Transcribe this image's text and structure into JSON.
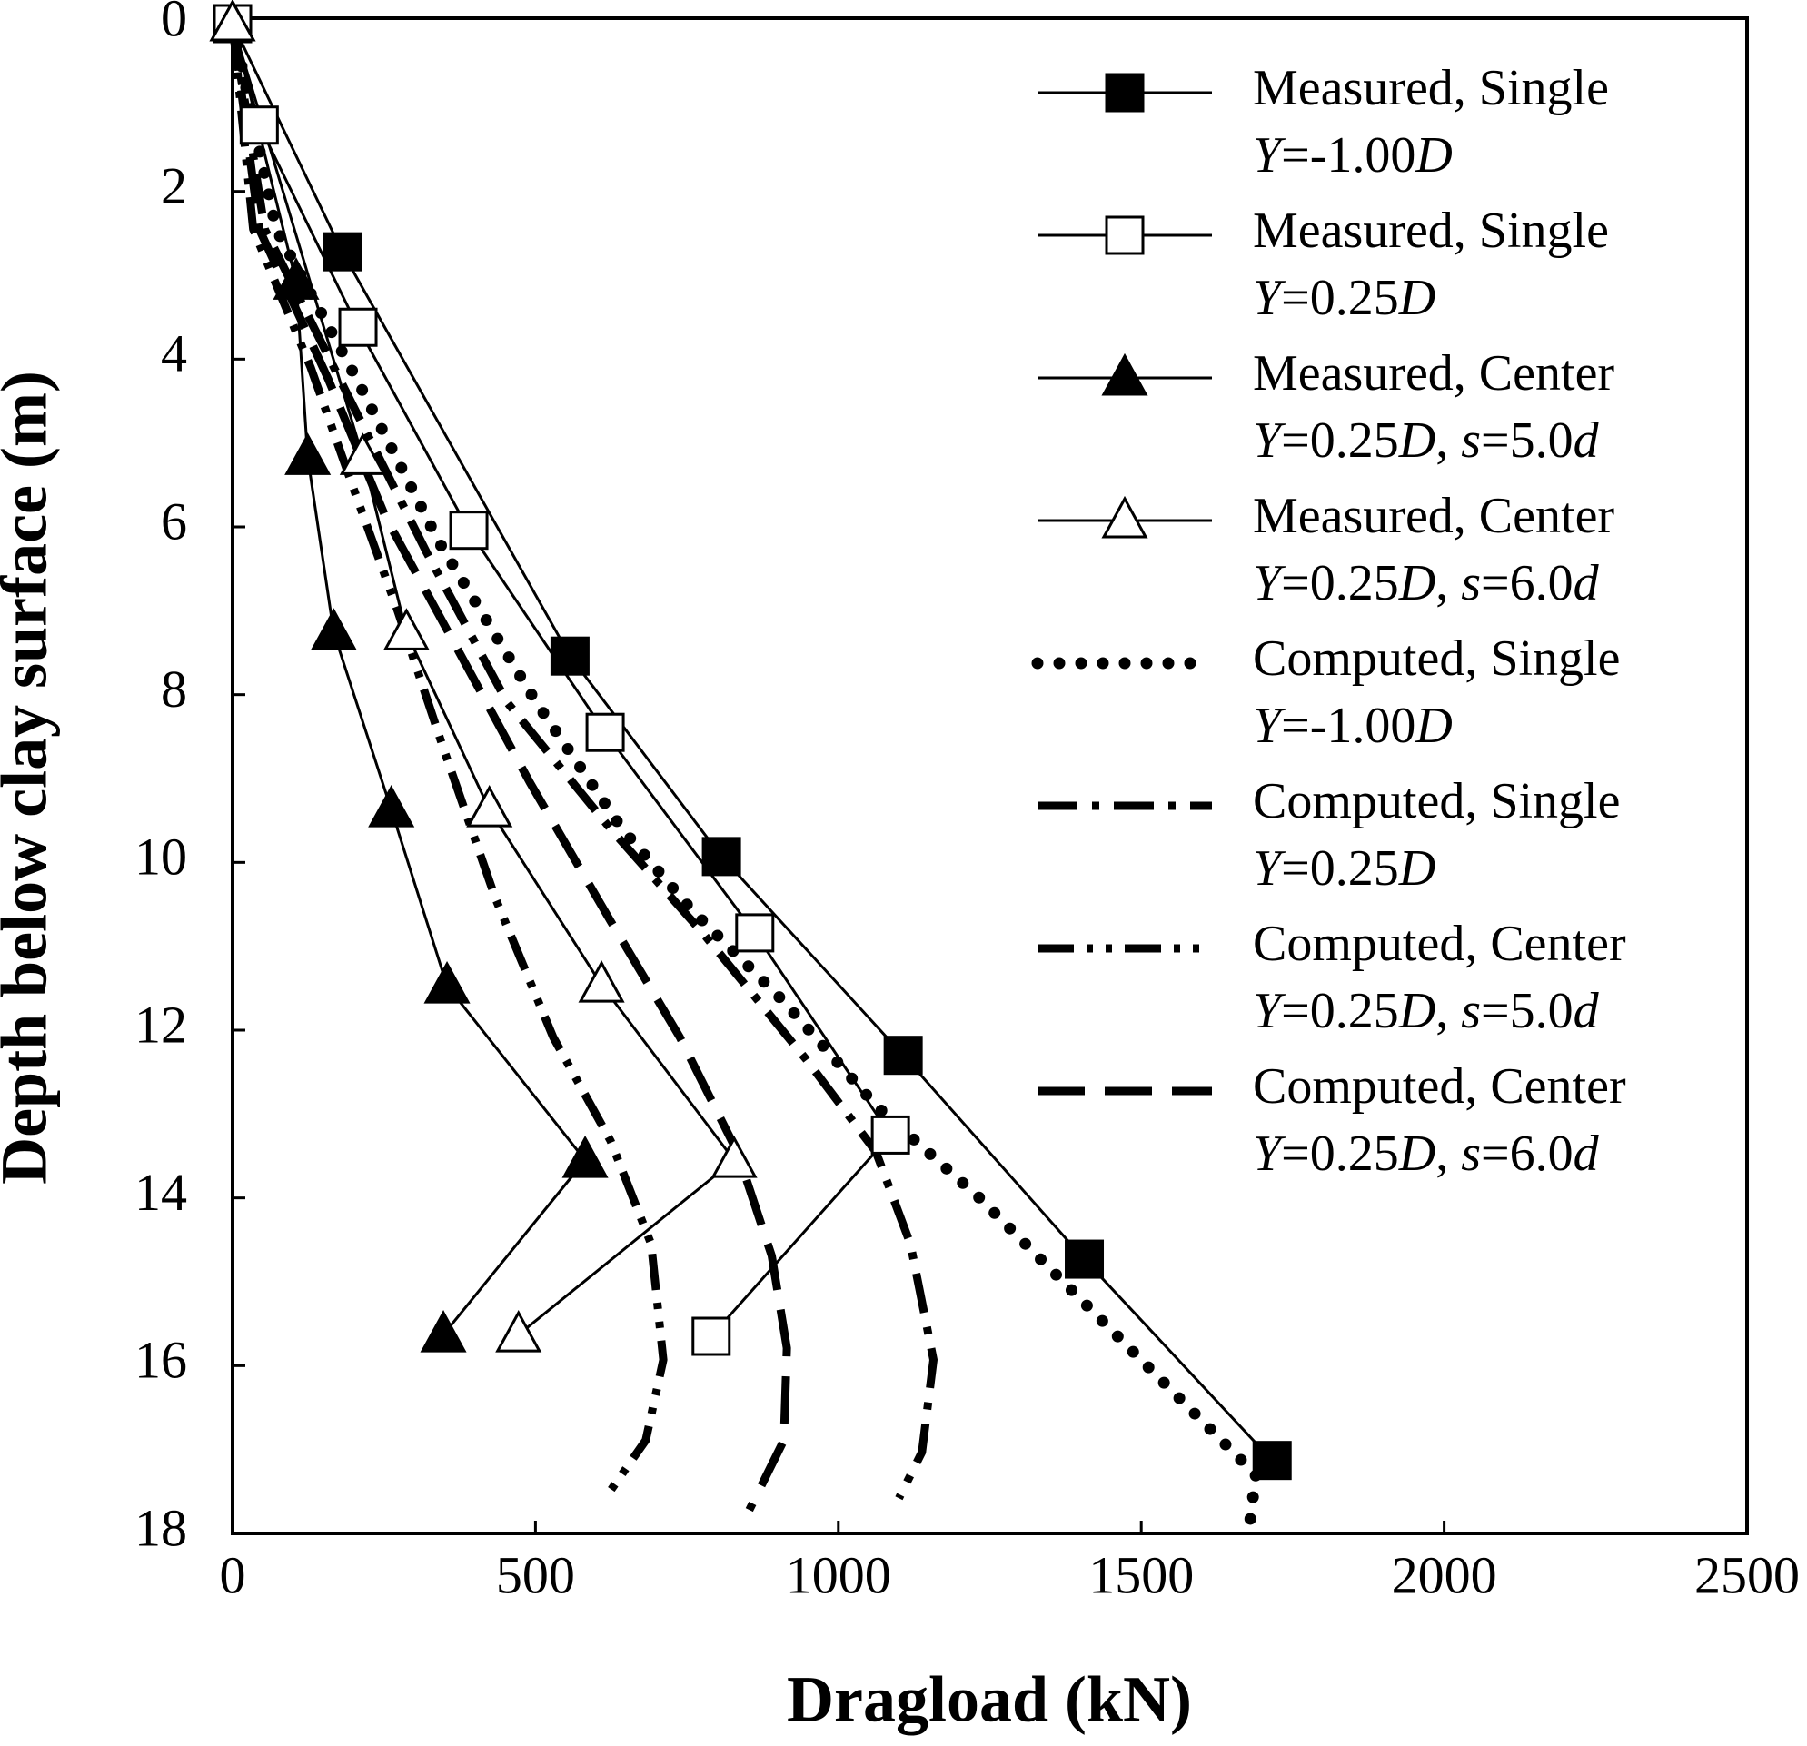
{
  "chart_data": {
    "type": "line",
    "x_label": "Dragload (kN)",
    "y_label": "Depth below clay surface (m)",
    "xlim": [
      0,
      2500
    ],
    "xticks": [
      0,
      500,
      1000,
      1500,
      2000,
      2500
    ],
    "ylim": [
      0,
      18
    ],
    "yticks": [
      0,
      2,
      4,
      6,
      8,
      10,
      12,
      14,
      16,
      18
    ],
    "y_inverted": true,
    "legend": "upper right",
    "series": [
      {
        "name": "Measured, Single",
        "condition": "Y=-1.00D",
        "color": "#000000",
        "marker": "square-filled",
        "dash": "solid",
        "x": [
          0,
          181,
          557,
          807,
          1107,
          1406,
          1716
        ],
        "values": [
          0,
          2.72,
          7.54,
          9.93,
          12.3,
          14.73,
          17.13
        ]
      },
      {
        "name": "Measured, Single",
        "condition": "Y=0.25D",
        "color": "#000000",
        "marker": "square-open",
        "dash": "solid",
        "x": [
          0,
          44,
          207,
          390,
          615,
          862,
          1086,
          790
        ],
        "values": [
          0,
          1.21,
          3.62,
          6.04,
          8.45,
          10.84,
          13.25,
          15.65
        ]
      },
      {
        "name": "Measured, Center",
        "condition": "Y=0.25D, s=5.0d",
        "color": "#000000",
        "marker": "triangle-filled",
        "dash": "solid",
        "x": [
          0,
          105,
          124,
          167,
          262,
          354,
          582,
          348
        ],
        "values": [
          0,
          3.08,
          5.17,
          7.26,
          9.37,
          11.47,
          13.55,
          15.63
        ]
      },
      {
        "name": "Measured, Center",
        "condition": "Y=0.25D, s=6.0d",
        "color": "#000000",
        "marker": "triangle-open",
        "dash": "solid",
        "x": [
          0,
          215,
          287,
          424,
          609,
          828,
          472
        ],
        "values": [
          0,
          5.17,
          7.26,
          9.37,
          11.46,
          13.55,
          15.63
        ]
      },
      {
        "name": "Computed, Single",
        "condition": "Y=-1.00D",
        "color": "#000000",
        "marker": "none",
        "dash": "dotted",
        "x": [
          0,
          72,
          205,
          339,
          501,
          643,
          757,
          910,
          1062,
          1233,
          1385,
          1537,
          1689,
          1680
        ],
        "values": [
          0,
          2.45,
          4.24,
          6.16,
          8.09,
          9.6,
          10.56,
          11.66,
          12.9,
          14.0,
          15.1,
          16.2,
          17.3,
          17.83
        ]
      },
      {
        "name": "Computed, Single",
        "condition": "Y=0.25D",
        "color": "#000000",
        "marker": "none",
        "dash": "dash-dot",
        "x": [
          0,
          53,
          186,
          320,
          453,
          624,
          776,
          947,
          1062,
          1119,
          1157,
          1138,
          1100
        ],
        "values": [
          0,
          2.45,
          4.37,
          6.3,
          8.09,
          9.6,
          10.84,
          12.35,
          13.45,
          14.55,
          15.93,
          17.03,
          17.58
        ]
      },
      {
        "name": "Computed, Center",
        "condition": "Y=0.25D, s=5.0d",
        "color": "#000000",
        "marker": "none",
        "dash": "dash-dot-dot",
        "x": [
          0,
          34,
          129,
          196,
          272,
          348,
          434,
          529,
          624,
          691,
          711,
          682,
          615
        ],
        "values": [
          0,
          2.45,
          4.1,
          5.47,
          6.99,
          8.64,
          10.43,
          12.08,
          13.32,
          14.55,
          15.93,
          16.89,
          17.58
        ]
      },
      {
        "name": "Computed, Center",
        "condition": "Y=0.25D, s=6.0d",
        "color": "#000000",
        "marker": "none",
        "dash": "long-dash",
        "x": [
          0,
          44,
          158,
          253,
          367,
          491,
          624,
          738,
          833,
          890,
          915,
          910,
          853
        ],
        "values": [
          0,
          2.45,
          4.24,
          5.89,
          7.4,
          9.05,
          10.7,
          12.08,
          13.45,
          14.69,
          15.79,
          16.89,
          17.72
        ]
      }
    ]
  }
}
